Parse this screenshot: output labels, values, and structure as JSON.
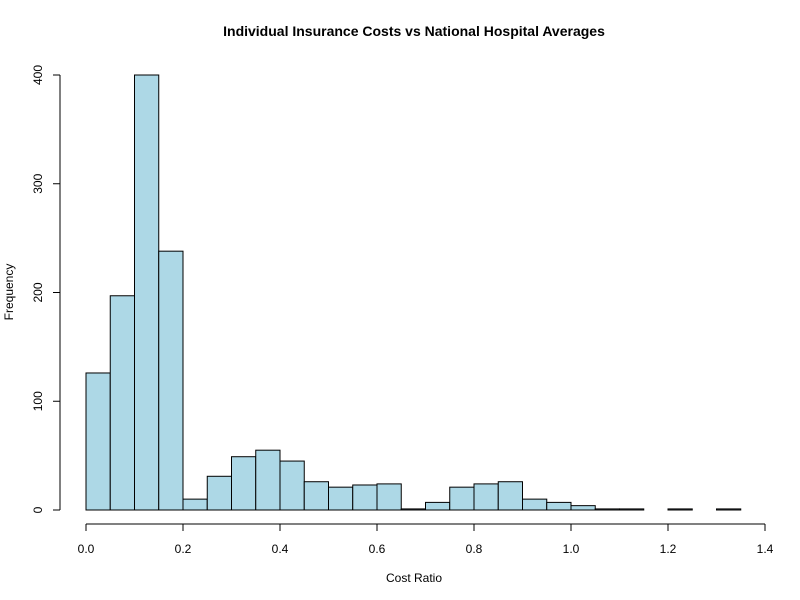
{
  "chart_data": {
    "type": "bar",
    "title": "Individual Insurance Costs vs National Hospital Averages",
    "xlabel": "Cost Ratio",
    "ylabel": "Frequency",
    "xlim": [
      0,
      1.4
    ],
    "ylim": [
      0,
      400
    ],
    "x_ticks": [
      "0.0",
      "0.2",
      "0.4",
      "0.6",
      "0.8",
      "1.0",
      "1.2",
      "1.4"
    ],
    "y_ticks": [
      "0",
      "100",
      "200",
      "300",
      "400"
    ],
    "bin_width": 0.05,
    "bins_start": [
      0.0,
      0.05,
      0.1,
      0.15,
      0.2,
      0.25,
      0.3,
      0.35,
      0.4,
      0.45,
      0.5,
      0.55,
      0.6,
      0.65,
      0.7,
      0.75,
      0.8,
      0.85,
      0.9,
      0.95,
      1.0,
      1.05,
      1.1,
      1.15,
      1.2,
      1.25,
      1.3
    ],
    "values": [
      126,
      197,
      400,
      238,
      10,
      31,
      49,
      55,
      45,
      26,
      21,
      23,
      24,
      1,
      7,
      21,
      24,
      26,
      10,
      7,
      4,
      1,
      1,
      0,
      1,
      0,
      1
    ],
    "colors": {
      "bar_fill": "#add8e6",
      "bar_stroke": "#000000"
    },
    "grid": false,
    "legend": "none"
  }
}
